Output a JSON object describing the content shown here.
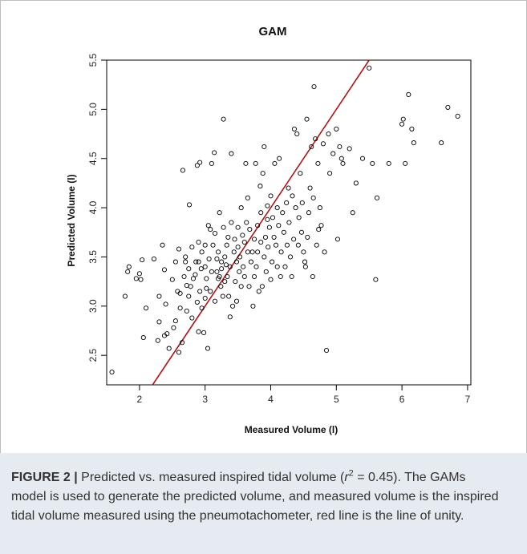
{
  "chart_data": {
    "type": "scatter",
    "title": "GAM",
    "xlabel": "Measured Volume (l)",
    "ylabel": "Predicted Volume (l)",
    "xlim": [
      1.5,
      7.05
    ],
    "ylim": [
      2.2,
      5.5
    ],
    "xticks": [
      "2",
      "3",
      "4",
      "5",
      "6",
      "7"
    ],
    "yticks": [
      "2.5",
      "3.0",
      "3.5",
      "4.0",
      "4.5",
      "5.0",
      "5.5"
    ],
    "grid": false,
    "marker": "open-circle",
    "point_color": "#000000",
    "line_of_unity": {
      "label": "line of unity",
      "color": "#b01515",
      "slope": 1,
      "intercept": 0
    },
    "points": [
      [
        1.58,
        2.33
      ],
      [
        1.78,
        3.1
      ],
      [
        1.82,
        3.35
      ],
      [
        1.84,
        3.4
      ],
      [
        1.95,
        3.28
      ],
      [
        2.0,
        3.33
      ],
      [
        2.02,
        3.27
      ],
      [
        2.04,
        3.47
      ],
      [
        2.06,
        2.68
      ],
      [
        2.1,
        2.98
      ],
      [
        2.22,
        3.48
      ],
      [
        2.28,
        2.65
      ],
      [
        2.3,
        2.84
      ],
      [
        2.3,
        3.1
      ],
      [
        2.35,
        3.62
      ],
      [
        2.38,
        2.7
      ],
      [
        2.38,
        3.37
      ],
      [
        2.4,
        3.02
      ],
      [
        2.42,
        2.72
      ],
      [
        2.45,
        2.57
      ],
      [
        2.5,
        3.27
      ],
      [
        2.52,
        2.78
      ],
      [
        2.55,
        2.85
      ],
      [
        2.55,
        3.45
      ],
      [
        2.58,
        3.15
      ],
      [
        2.6,
        2.53
      ],
      [
        2.6,
        3.58
      ],
      [
        2.62,
        2.98
      ],
      [
        2.62,
        3.13
      ],
      [
        2.65,
        2.63
      ],
      [
        2.66,
        4.38
      ],
      [
        2.68,
        3.3
      ],
      [
        2.7,
        3.45
      ],
      [
        2.7,
        3.5
      ],
      [
        2.72,
        2.95
      ],
      [
        2.72,
        3.21
      ],
      [
        2.75,
        3.1
      ],
      [
        2.75,
        3.38
      ],
      [
        2.76,
        4.03
      ],
      [
        2.78,
        3.2
      ],
      [
        2.8,
        2.88
      ],
      [
        2.8,
        3.6
      ],
      [
        2.82,
        3.28
      ],
      [
        2.85,
        3.32
      ],
      [
        2.86,
        3.45
      ],
      [
        2.88,
        3.04
      ],
      [
        2.88,
        4.43
      ],
      [
        2.9,
        2.74
      ],
      [
        2.9,
        3.45
      ],
      [
        2.9,
        3.65
      ],
      [
        2.92,
        4.46
      ],
      [
        2.92,
        3.15
      ],
      [
        2.94,
        3.38
      ],
      [
        2.95,
        2.98
      ],
      [
        2.95,
        3.55
      ],
      [
        2.98,
        2.73
      ],
      [
        3.0,
        3.08
      ],
      [
        3.0,
        3.4
      ],
      [
        3.0,
        3.62
      ],
      [
        3.02,
        3.28
      ],
      [
        3.02,
        3.18
      ],
      [
        3.04,
        2.57
      ],
      [
        3.05,
        3.82
      ],
      [
        3.06,
        3.48
      ],
      [
        3.08,
        3.78
      ],
      [
        3.08,
        3.15
      ],
      [
        3.1,
        3.35
      ],
      [
        3.1,
        4.45
      ],
      [
        3.12,
        3.62
      ],
      [
        3.14,
        4.56
      ],
      [
        3.15,
        3.05
      ],
      [
        3.15,
        3.74
      ],
      [
        3.18,
        3.35
      ],
      [
        3.18,
        3.48
      ],
      [
        3.2,
        3.28
      ],
      [
        3.2,
        3.55
      ],
      [
        3.22,
        3.95
      ],
      [
        3.22,
        3.3
      ],
      [
        3.24,
        3.2
      ],
      [
        3.25,
        3.38
      ],
      [
        3.25,
        3.45
      ],
      [
        3.27,
        3.1
      ],
      [
        3.28,
        4.9
      ],
      [
        3.28,
        3.8
      ],
      [
        3.3,
        3.25
      ],
      [
        3.3,
        3.5
      ],
      [
        3.32,
        3.42
      ],
      [
        3.33,
        3.62
      ],
      [
        3.34,
        3.3
      ],
      [
        3.35,
        3.7
      ],
      [
        3.36,
        3.1
      ],
      [
        3.38,
        3.4
      ],
      [
        3.38,
        2.89
      ],
      [
        3.4,
        4.55
      ],
      [
        3.4,
        3.85
      ],
      [
        3.42,
        3.0
      ],
      [
        3.44,
        3.55
      ],
      [
        3.45,
        3.68
      ],
      [
        3.46,
        3.25
      ],
      [
        3.48,
        3.05
      ],
      [
        3.48,
        3.45
      ],
      [
        3.5,
        3.8
      ],
      [
        3.5,
        3.6
      ],
      [
        3.52,
        3.35
      ],
      [
        3.53,
        3.5
      ],
      [
        3.55,
        3.2
      ],
      [
        3.55,
        4.0
      ],
      [
        3.57,
        3.72
      ],
      [
        3.58,
        3.4
      ],
      [
        3.6,
        3.65
      ],
      [
        3.6,
        3.3
      ],
      [
        3.62,
        4.45
      ],
      [
        3.63,
        3.85
      ],
      [
        3.65,
        3.55
      ],
      [
        3.65,
        4.1
      ],
      [
        3.67,
        3.2
      ],
      [
        3.68,
        3.78
      ],
      [
        3.7,
        3.45
      ],
      [
        3.72,
        3.55
      ],
      [
        3.73,
        3.0
      ],
      [
        3.75,
        3.3
      ],
      [
        3.75,
        3.68
      ],
      [
        3.77,
        4.45
      ],
      [
        3.78,
        3.4
      ],
      [
        3.8,
        3.82
      ],
      [
        3.8,
        3.55
      ],
      [
        3.82,
        3.15
      ],
      [
        3.84,
        4.22
      ],
      [
        3.85,
        3.95
      ],
      [
        3.85,
        3.65
      ],
      [
        3.87,
        3.2
      ],
      [
        3.88,
        4.35
      ],
      [
        3.9,
        3.5
      ],
      [
        3.9,
        4.62
      ],
      [
        3.92,
        3.7
      ],
      [
        3.93,
        3.35
      ],
      [
        3.95,
        3.88
      ],
      [
        3.95,
        4.02
      ],
      [
        3.96,
        3.6
      ],
      [
        3.98,
        3.8
      ],
      [
        4.0,
        3.27
      ],
      [
        4.0,
        4.12
      ],
      [
        4.02,
        3.45
      ],
      [
        4.03,
        3.9
      ],
      [
        4.05,
        3.7
      ],
      [
        4.06,
        4.45
      ],
      [
        4.08,
        3.62
      ],
      [
        4.1,
        4.0
      ],
      [
        4.1,
        3.4
      ],
      [
        4.12,
        3.82
      ],
      [
        4.13,
        4.5
      ],
      [
        4.15,
        3.3
      ],
      [
        4.16,
        3.55
      ],
      [
        4.18,
        3.95
      ],
      [
        4.2,
        3.75
      ],
      [
        4.22,
        3.4
      ],
      [
        4.24,
        4.05
      ],
      [
        4.25,
        3.62
      ],
      [
        4.27,
        4.2
      ],
      [
        4.28,
        3.85
      ],
      [
        4.3,
        3.5
      ],
      [
        4.32,
        3.3
      ],
      [
        4.33,
        4.12
      ],
      [
        4.35,
        3.68
      ],
      [
        4.36,
        4.8
      ],
      [
        4.38,
        4.0
      ],
      [
        4.4,
        4.75
      ],
      [
        4.42,
        3.62
      ],
      [
        4.43,
        3.9
      ],
      [
        4.45,
        4.35
      ],
      [
        4.47,
        3.75
      ],
      [
        4.48,
        4.05
      ],
      [
        4.5,
        3.55
      ],
      [
        4.52,
        3.45
      ],
      [
        4.53,
        3.4
      ],
      [
        4.55,
        4.9
      ],
      [
        4.56,
        3.7
      ],
      [
        4.58,
        3.95
      ],
      [
        4.6,
        4.2
      ],
      [
        4.62,
        4.62
      ],
      [
        4.64,
        3.3
      ],
      [
        4.65,
        4.1
      ],
      [
        4.66,
        5.23
      ],
      [
        4.68,
        4.7
      ],
      [
        4.7,
        3.62
      ],
      [
        4.72,
        4.45
      ],
      [
        4.73,
        3.78
      ],
      [
        4.75,
        4.0
      ],
      [
        4.77,
        3.82
      ],
      [
        4.8,
        4.65
      ],
      [
        4.82,
        3.55
      ],
      [
        4.85,
        2.55
      ],
      [
        4.88,
        4.75
      ],
      [
        4.9,
        4.35
      ],
      [
        4.95,
        4.55
      ],
      [
        5.0,
        4.8
      ],
      [
        5.02,
        3.68
      ],
      [
        5.05,
        4.62
      ],
      [
        5.08,
        4.5
      ],
      [
        5.1,
        4.45
      ],
      [
        5.2,
        4.6
      ],
      [
        5.25,
        3.95
      ],
      [
        5.3,
        4.25
      ],
      [
        5.4,
        4.5
      ],
      [
        5.5,
        5.42
      ],
      [
        5.55,
        4.45
      ],
      [
        5.6,
        3.27
      ],
      [
        5.62,
        4.1
      ],
      [
        5.8,
        4.45
      ],
      [
        6.0,
        4.85
      ],
      [
        6.02,
        4.9
      ],
      [
        6.05,
        4.45
      ],
      [
        6.1,
        5.15
      ],
      [
        6.15,
        4.8
      ],
      [
        6.18,
        4.66
      ],
      [
        6.6,
        4.66
      ],
      [
        6.7,
        5.02
      ],
      [
        6.85,
        4.93
      ]
    ]
  },
  "caption": {
    "label": "FIGURE 2 |",
    "text_before_sup": " Predicted vs. measured inspired tidal volume (",
    "r_symbol": "r",
    "sup": "2",
    "text_after_sup": " = 0.45). The GAMs model is used to generate the predicted volume, and measured volume is the inspired tidal volume measured using the pneumotachometer, red line is the line of unity."
  }
}
